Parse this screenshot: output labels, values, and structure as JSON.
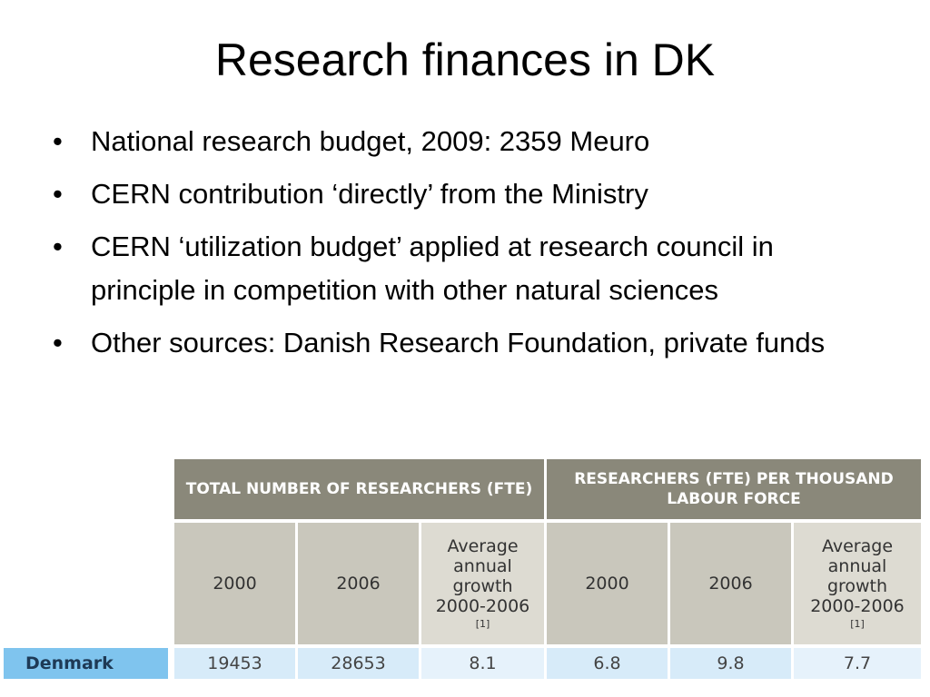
{
  "slide": {
    "title": "Research finances in DK",
    "bullets": [
      "National research budget, 2009: 2359 Meuro",
      "CERN contribution ‘directly’ from the Ministry",
      "CERN ‘utilization budget’ applied at research council in principle in competition with other natural sciences",
      "Other sources: Danish Research Foundation, private funds"
    ]
  },
  "table": {
    "group_headers": [
      "TOTAL NUMBER OF RESEARCHERS (FTE)",
      "RESEARCHERS (FTE) PER THOUSAND LABOUR FORCE"
    ],
    "sub_headers": [
      {
        "label": "2000",
        "note": ""
      },
      {
        "label": "2006",
        "note": ""
      },
      {
        "label": "Average annual growth 2000-2006",
        "note": "[1]"
      },
      {
        "label": "2000",
        "note": ""
      },
      {
        "label": "2006",
        "note": ""
      },
      {
        "label": "Average annual growth 2000-2006",
        "note": "[1]"
      }
    ],
    "rows": [
      {
        "label": "Denmark",
        "values": [
          "19453",
          "28653",
          "8.1",
          "6.8",
          "9.8",
          "7.7"
        ]
      }
    ]
  }
}
